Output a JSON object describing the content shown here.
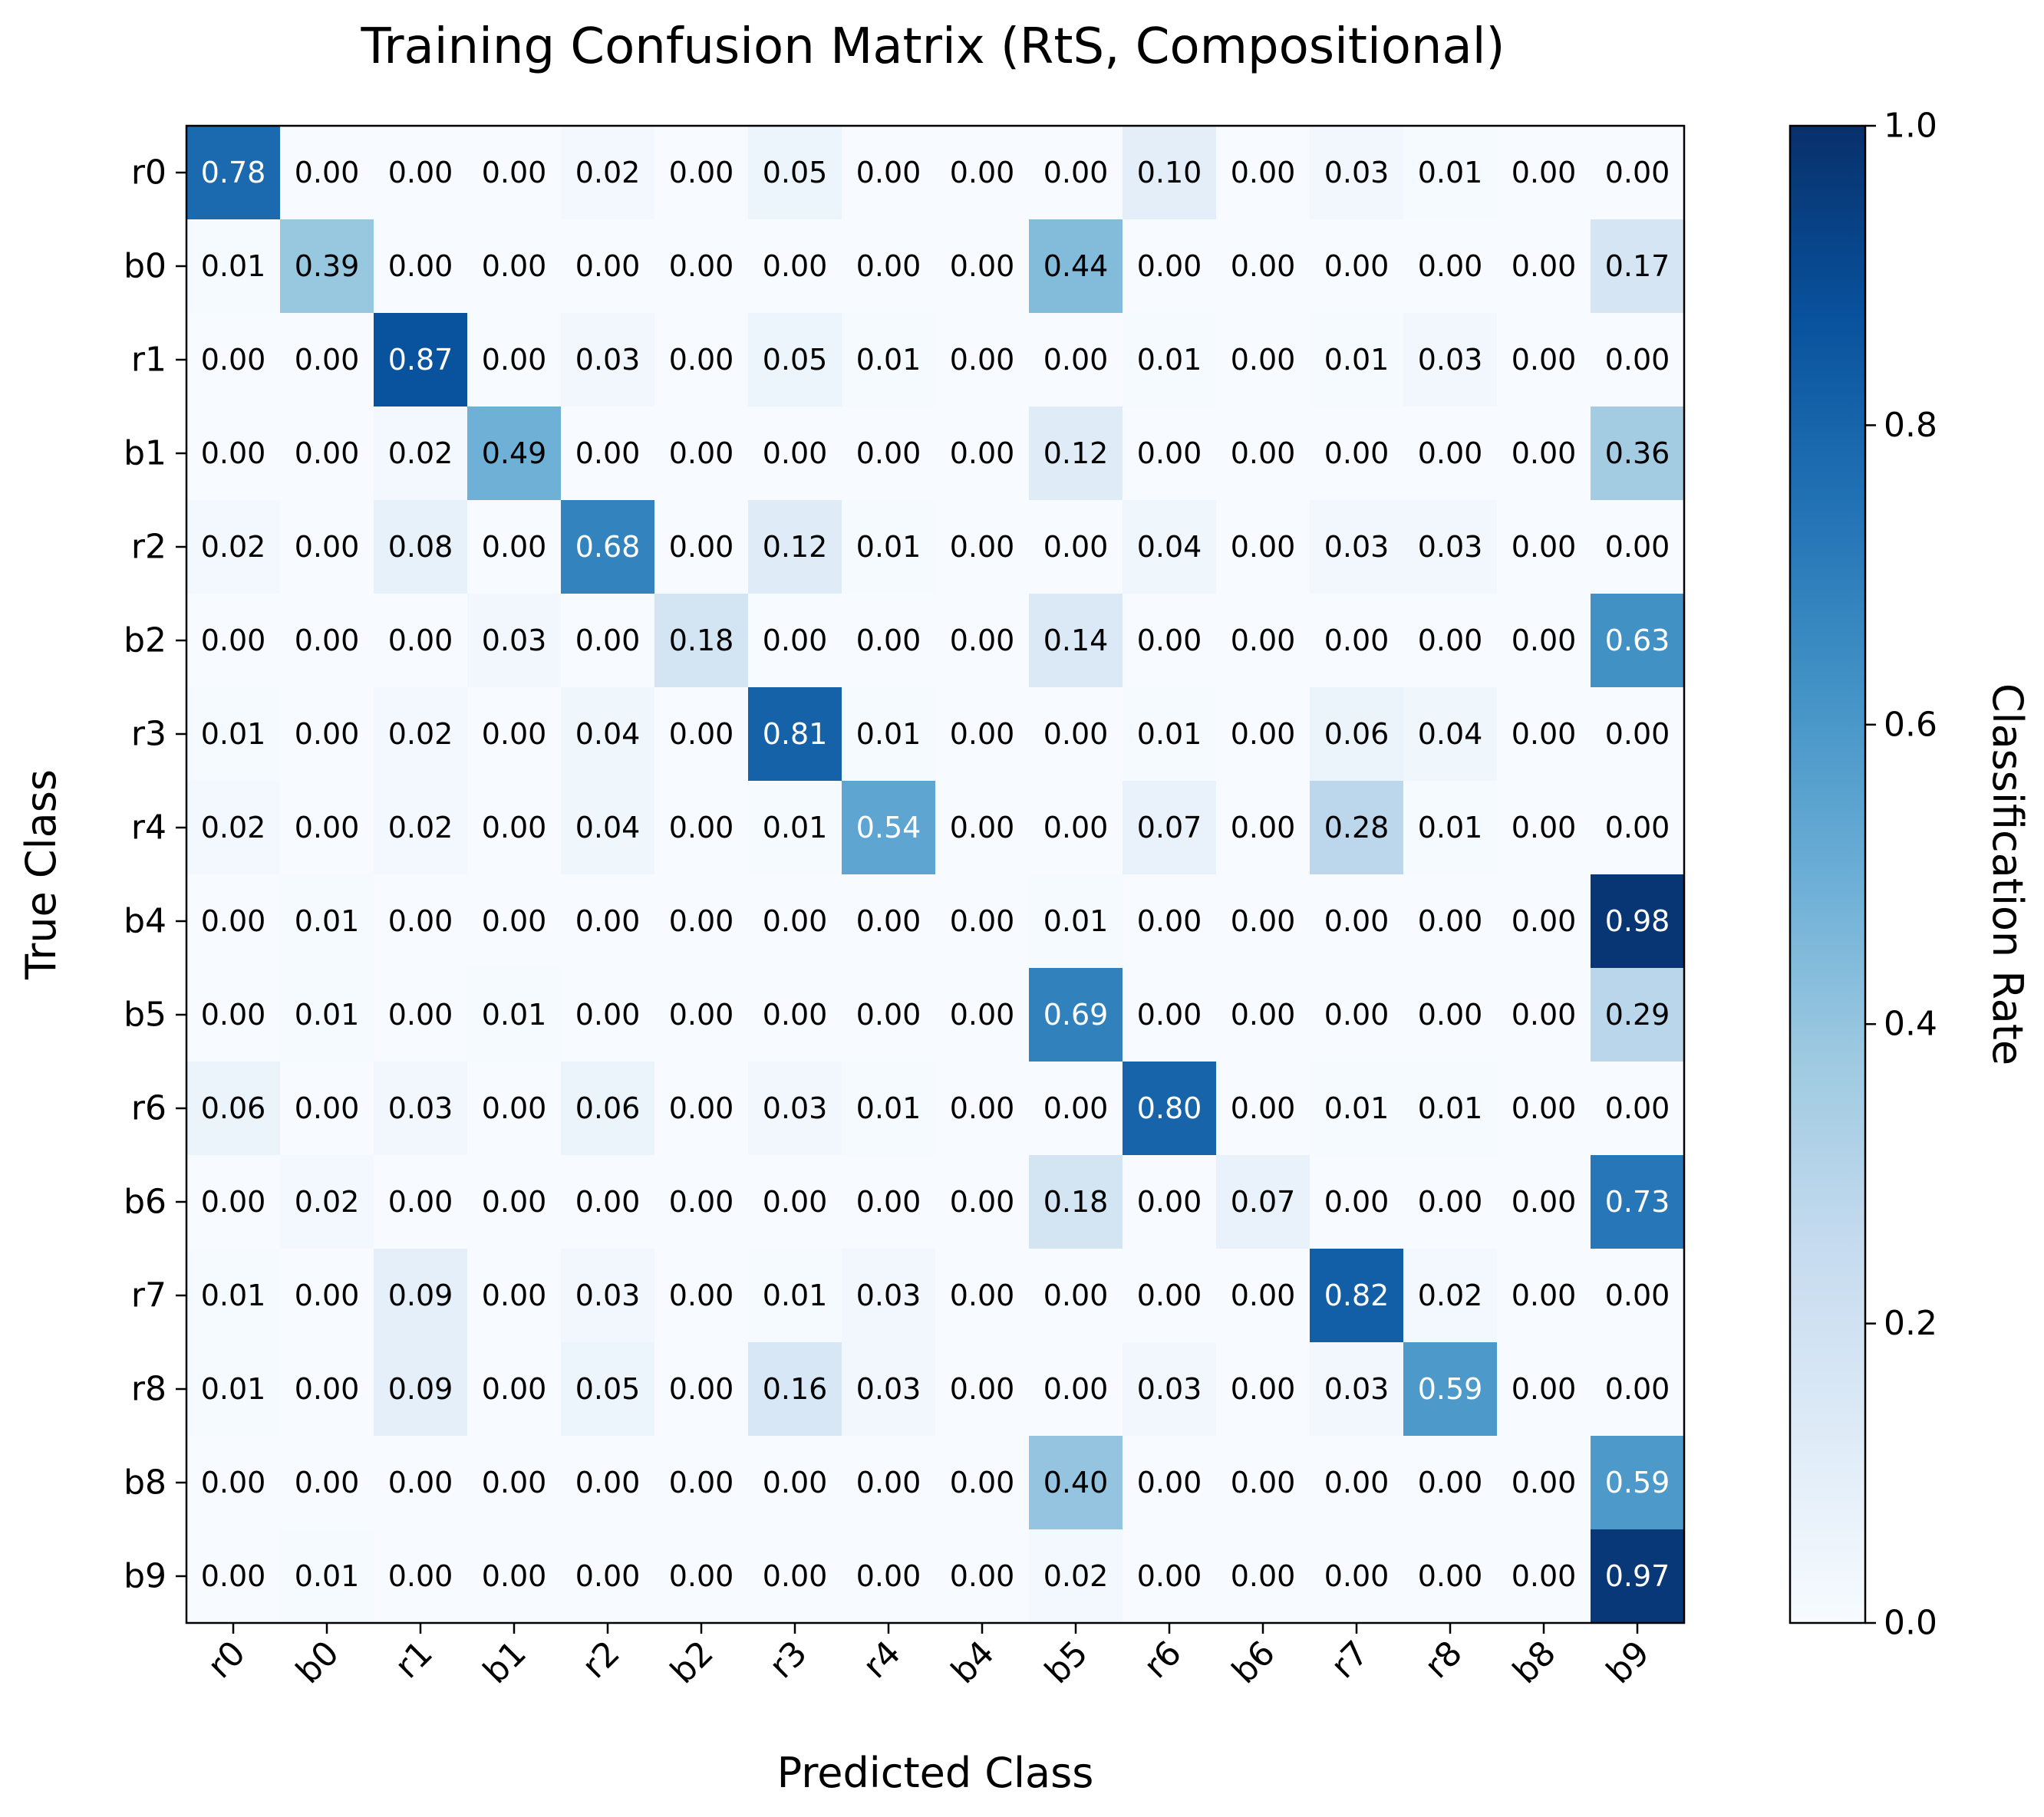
{
  "chart_data": {
    "type": "heatmap",
    "title": "Training Confusion Matrix (RtS, Compositional)",
    "xlabel": "Predicted Class",
    "ylabel": "True Class",
    "x_categories": [
      "r0",
      "b0",
      "r1",
      "b1",
      "r2",
      "b2",
      "r3",
      "r4",
      "b4",
      "b5",
      "r6",
      "b6",
      "r7",
      "r8",
      "b8",
      "b9"
    ],
    "y_categories": [
      "r0",
      "b0",
      "r1",
      "b1",
      "r2",
      "b2",
      "r3",
      "r4",
      "b4",
      "b5",
      "r6",
      "b6",
      "r7",
      "r8",
      "b8",
      "b9"
    ],
    "values": [
      [
        0.78,
        0.0,
        0.0,
        0.0,
        0.02,
        0.0,
        0.05,
        0.0,
        0.0,
        0.0,
        0.1,
        0.0,
        0.03,
        0.01,
        0.0,
        0.0
      ],
      [
        0.01,
        0.39,
        0.0,
        0.0,
        0.0,
        0.0,
        0.0,
        0.0,
        0.0,
        0.44,
        0.0,
        0.0,
        0.0,
        0.0,
        0.0,
        0.17
      ],
      [
        0.0,
        0.0,
        0.87,
        0.0,
        0.03,
        0.0,
        0.05,
        0.01,
        0.0,
        0.0,
        0.01,
        0.0,
        0.01,
        0.03,
        0.0,
        0.0
      ],
      [
        0.0,
        0.0,
        0.02,
        0.49,
        0.0,
        0.0,
        0.0,
        0.0,
        0.0,
        0.12,
        0.0,
        0.0,
        0.0,
        0.0,
        0.0,
        0.36
      ],
      [
        0.02,
        0.0,
        0.08,
        0.0,
        0.68,
        0.0,
        0.12,
        0.01,
        0.0,
        0.0,
        0.04,
        0.0,
        0.03,
        0.03,
        0.0,
        0.0
      ],
      [
        0.0,
        0.0,
        0.0,
        0.03,
        0.0,
        0.18,
        0.0,
        0.0,
        0.0,
        0.14,
        0.0,
        0.0,
        0.0,
        0.0,
        0.0,
        0.63
      ],
      [
        0.01,
        0.0,
        0.02,
        0.0,
        0.04,
        0.0,
        0.81,
        0.01,
        0.0,
        0.0,
        0.01,
        0.0,
        0.06,
        0.04,
        0.0,
        0.0
      ],
      [
        0.02,
        0.0,
        0.02,
        0.0,
        0.04,
        0.0,
        0.01,
        0.54,
        0.0,
        0.0,
        0.07,
        0.0,
        0.28,
        0.01,
        0.0,
        0.0
      ],
      [
        0.0,
        0.01,
        0.0,
        0.0,
        0.0,
        0.0,
        0.0,
        0.0,
        0.0,
        0.01,
        0.0,
        0.0,
        0.0,
        0.0,
        0.0,
        0.98
      ],
      [
        0.0,
        0.01,
        0.0,
        0.01,
        0.0,
        0.0,
        0.0,
        0.0,
        0.0,
        0.69,
        0.0,
        0.0,
        0.0,
        0.0,
        0.0,
        0.29
      ],
      [
        0.06,
        0.0,
        0.03,
        0.0,
        0.06,
        0.0,
        0.03,
        0.01,
        0.0,
        0.0,
        0.8,
        0.0,
        0.01,
        0.01,
        0.0,
        0.0
      ],
      [
        0.0,
        0.02,
        0.0,
        0.0,
        0.0,
        0.0,
        0.0,
        0.0,
        0.0,
        0.18,
        0.0,
        0.07,
        0.0,
        0.0,
        0.0,
        0.73
      ],
      [
        0.01,
        0.0,
        0.09,
        0.0,
        0.03,
        0.0,
        0.01,
        0.03,
        0.0,
        0.0,
        0.0,
        0.0,
        0.82,
        0.02,
        0.0,
        0.0
      ],
      [
        0.01,
        0.0,
        0.09,
        0.0,
        0.05,
        0.0,
        0.16,
        0.03,
        0.0,
        0.0,
        0.03,
        0.0,
        0.03,
        0.59,
        0.0,
        0.0
      ],
      [
        0.0,
        0.0,
        0.0,
        0.0,
        0.0,
        0.0,
        0.0,
        0.0,
        0.0,
        0.4,
        0.0,
        0.0,
        0.0,
        0.0,
        0.0,
        0.59
      ],
      [
        0.0,
        0.01,
        0.0,
        0.0,
        0.0,
        0.0,
        0.0,
        0.0,
        0.0,
        0.02,
        0.0,
        0.0,
        0.0,
        0.0,
        0.0,
        0.97
      ]
    ],
    "value_range": [
      0.0,
      1.0
    ],
    "colormap": "Blues",
    "colorbar": {
      "label": "Classification Rate",
      "ticks": [
        0.0,
        0.2,
        0.4,
        0.6,
        0.8,
        1.0
      ],
      "tick_labels": [
        "0.0",
        "0.2",
        "0.4",
        "0.6",
        "0.8",
        "1.0"
      ]
    },
    "legend": "none",
    "grid": false
  }
}
